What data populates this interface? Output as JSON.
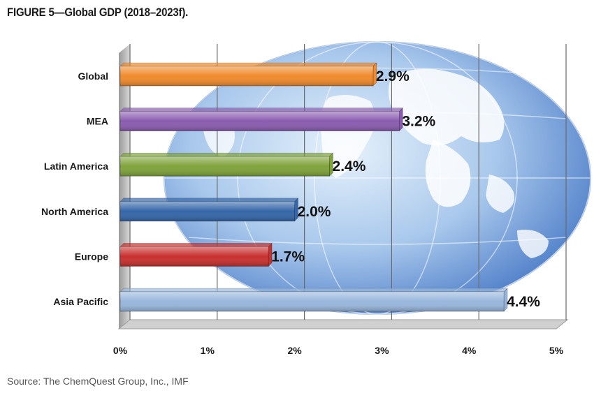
{
  "figure": {
    "title": "FIGURE 5—Global GDP (2018–2023f).",
    "source": "Source: The ChemQuest Group, Inc., IMF"
  },
  "chart_data": {
    "type": "bar",
    "orientation": "horizontal",
    "categories": [
      "Global",
      "MEA",
      "Latin America",
      "North America",
      "Europe",
      "Asia Pacific"
    ],
    "values": [
      2.9,
      3.2,
      2.4,
      2.0,
      1.7,
      4.4
    ],
    "data_labels": [
      "2.9%",
      "3.2%",
      "2.4%",
      "2.0%",
      "1.7%",
      "4.4%"
    ],
    "colors": [
      "#f08a2c",
      "#8a5cb0",
      "#7fa33a",
      "#3466a8",
      "#c8302e",
      "#98b6dc"
    ],
    "xlim": [
      0,
      5
    ],
    "xticks": [
      "0%",
      "1%",
      "2%",
      "3%",
      "4%",
      "5%"
    ],
    "grid": true,
    "legend": false,
    "background": "globe"
  }
}
